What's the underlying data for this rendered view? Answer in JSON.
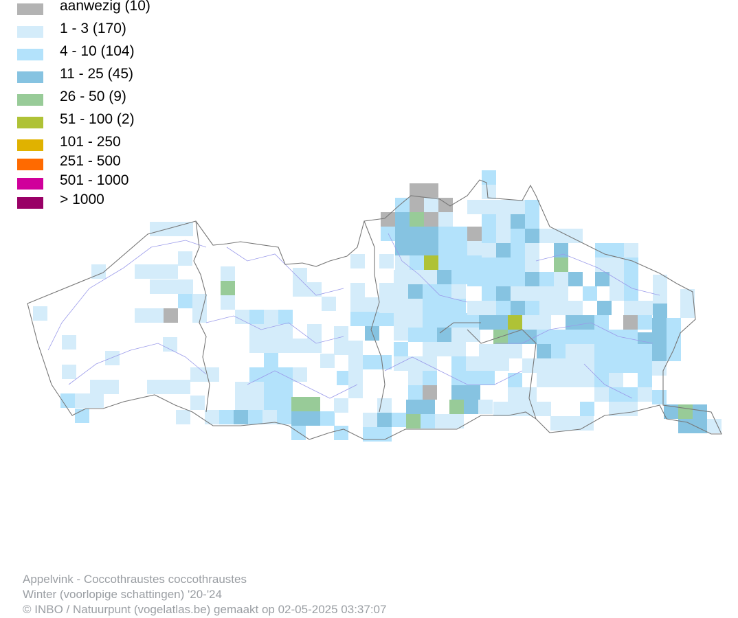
{
  "legend": [
    {
      "label": "aanwezig (10)",
      "color": "#b3b3b3"
    },
    {
      "label": "1 - 3 (170)",
      "color": "#d4ecfa"
    },
    {
      "label": "4 - 10 (104)",
      "color": "#b3e2fb"
    },
    {
      "label": "11 - 25 (45)",
      "color": "#86c3e1"
    },
    {
      "label": "26 - 50 (9)",
      "color": "#98cb98"
    },
    {
      "label": "51 - 100 (2)",
      "color": "#afc236"
    },
    {
      "label": "101 - 250",
      "color": "#e0b200"
    },
    {
      "label": "251 - 500",
      "color": "#ff6a00"
    },
    {
      "label": "501 - 1000",
      "color": "#d0009b"
    },
    {
      "label": "> 1000",
      "color": "#990066"
    }
  ],
  "credits": {
    "line1": "Appelvink - Coccothraustes coccothraustes",
    "line2": "Winter (voorlopige schattingen) '20-'24",
    "line3": "© INBO / Natuurpunt (vogelatlas.be) gemaakt op 02-05-2025 03:37:07"
  },
  "map": {
    "border_color": "#777777",
    "river_color": "#9a9aea"
  }
}
